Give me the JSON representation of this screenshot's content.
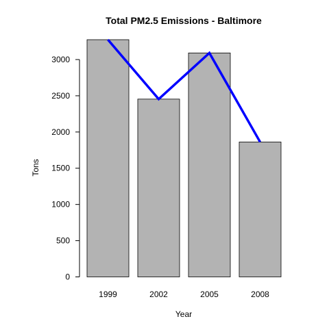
{
  "chart_data": {
    "type": "bar",
    "title": "Total PM2.5 Emissions - Baltimore",
    "xlabel": "Year",
    "ylabel": "Tons",
    "categories": [
      "1999",
      "2002",
      "2005",
      "2008"
    ],
    "values": [
      3274,
      2454,
      3091,
      1862
    ],
    "ylim": [
      0,
      3274
    ],
    "yticks": [
      0,
      500,
      1000,
      1500,
      2000,
      2500,
      3000
    ],
    "overlay_line": {
      "type": "line",
      "values": [
        3274,
        2454,
        3091,
        1862
      ]
    },
    "grid": false,
    "colors": {
      "bar_fill": "#b3b3b3",
      "bar_stroke": "#000000",
      "line": "#0000ff"
    }
  }
}
